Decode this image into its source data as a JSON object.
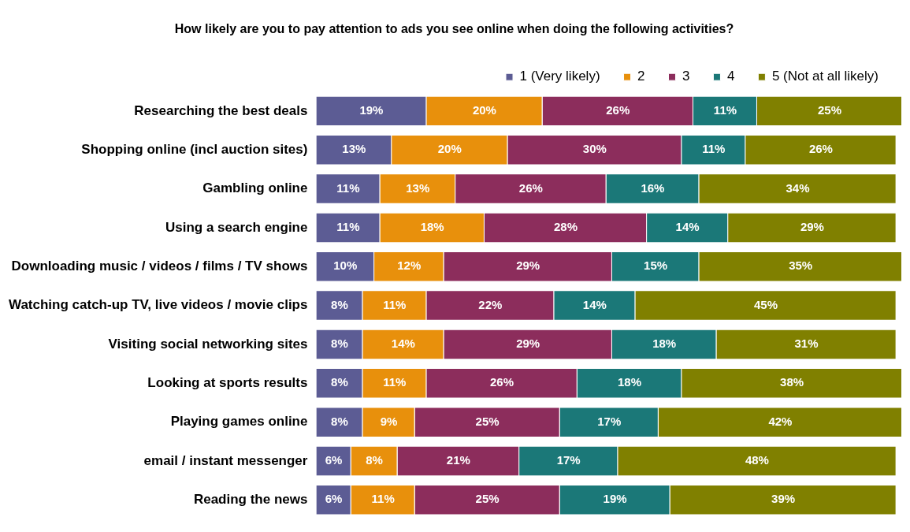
{
  "chart_data": {
    "type": "bar",
    "orientation": "horizontal",
    "stacked": true,
    "legend": "top right",
    "tick_labels": "y",
    "title": "How likely are you to pay attention to ads you see online when doing the following activities?",
    "categories": [
      "Researching the best deals",
      "Shopping online (incl auction sites)",
      "Gambling online",
      "Using a search engine",
      "Downloading music / videos / films / TV shows",
      "Watching catch-up TV, live videos / movie clips",
      "Visiting social networking sites",
      "Looking at sports results",
      "Playing games online",
      "email / instant messenger",
      "Reading the news"
    ],
    "series": [
      {
        "name": "1 (Very likely)",
        "color": "#5c5c94",
        "values": [
          19,
          13,
          11,
          11,
          10,
          8,
          8,
          8,
          8,
          6,
          6
        ],
        "value_labels": [
          "19%",
          "13%",
          "11%",
          "11%",
          "10%",
          "8%",
          "8%",
          "8%",
          "8%",
          "6%",
          "6%"
        ]
      },
      {
        "name": "2",
        "color": "#e8900c",
        "values": [
          20,
          20,
          13,
          18,
          12,
          11,
          14,
          11,
          9,
          8,
          11
        ],
        "value_labels": [
          "20%",
          "20%",
          "13%",
          "18%",
          "12%",
          "11%",
          "14%",
          "11%",
          "9%",
          "8%",
          "11%"
        ]
      },
      {
        "name": "3",
        "color": "#8c2d5c",
        "values": [
          26,
          30,
          26,
          28,
          29,
          22,
          29,
          26,
          25,
          21,
          25
        ],
        "value_labels": [
          "26%",
          "30%",
          "26%",
          "28%",
          "29%",
          "22%",
          "29%",
          "26%",
          "25%",
          "21%",
          "25%"
        ]
      },
      {
        "name": "4",
        "color": "#1b7878",
        "values": [
          11,
          11,
          16,
          14,
          15,
          14,
          18,
          18,
          17,
          17,
          19
        ],
        "value_labels": [
          "11%",
          "11%",
          "16%",
          "14%",
          "15%",
          "14%",
          "18%",
          "18%",
          "17%",
          "17%",
          "19%"
        ]
      },
      {
        "name": "5 (Not at all likely)",
        "color": "#808000",
        "values": [
          25,
          26,
          34,
          29,
          35,
          45,
          31,
          38,
          42,
          48,
          39
        ],
        "value_labels": [
          "25%",
          "26%",
          "34%",
          "29%",
          "35%",
          "45%",
          "31%",
          "38%",
          "42%",
          "48%",
          "39%"
        ]
      }
    ]
  }
}
